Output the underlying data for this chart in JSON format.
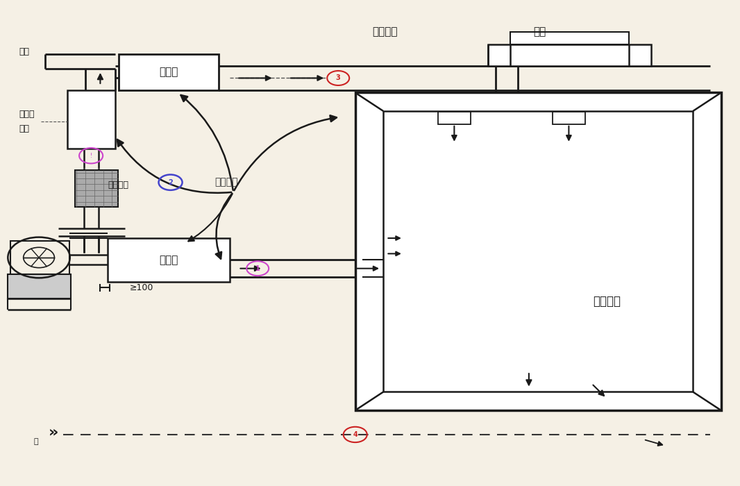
{
  "bg_color": "#f5f0e5",
  "line_color": "#1a1a1a",
  "labels": {
    "wan_tou": "弯头",
    "xiao_sheng_qi_top": "消声器",
    "xiao_sheng_qi_bottom": "消音器",
    "kong_qi_lv_xiang1": "空气洗",
    "kong_qi_lv_xiang2": "滤箱",
    "fang_zhen_jie_tou": "防振接头",
    "huan_jing_zao_sheng": "环境噪声",
    "zai_sheng_zao_sheng": "再生噪声",
    "san_tong": "三通",
    "tong_feng_fang_jian": "通风房间",
    "ge100": "≥100",
    "ceng": "层"
  },
  "circ1_color": "#cc44cc",
  "circ2_color": "#4444cc",
  "circ3_color": "#cc2222",
  "circ4_color": "#cc2222"
}
